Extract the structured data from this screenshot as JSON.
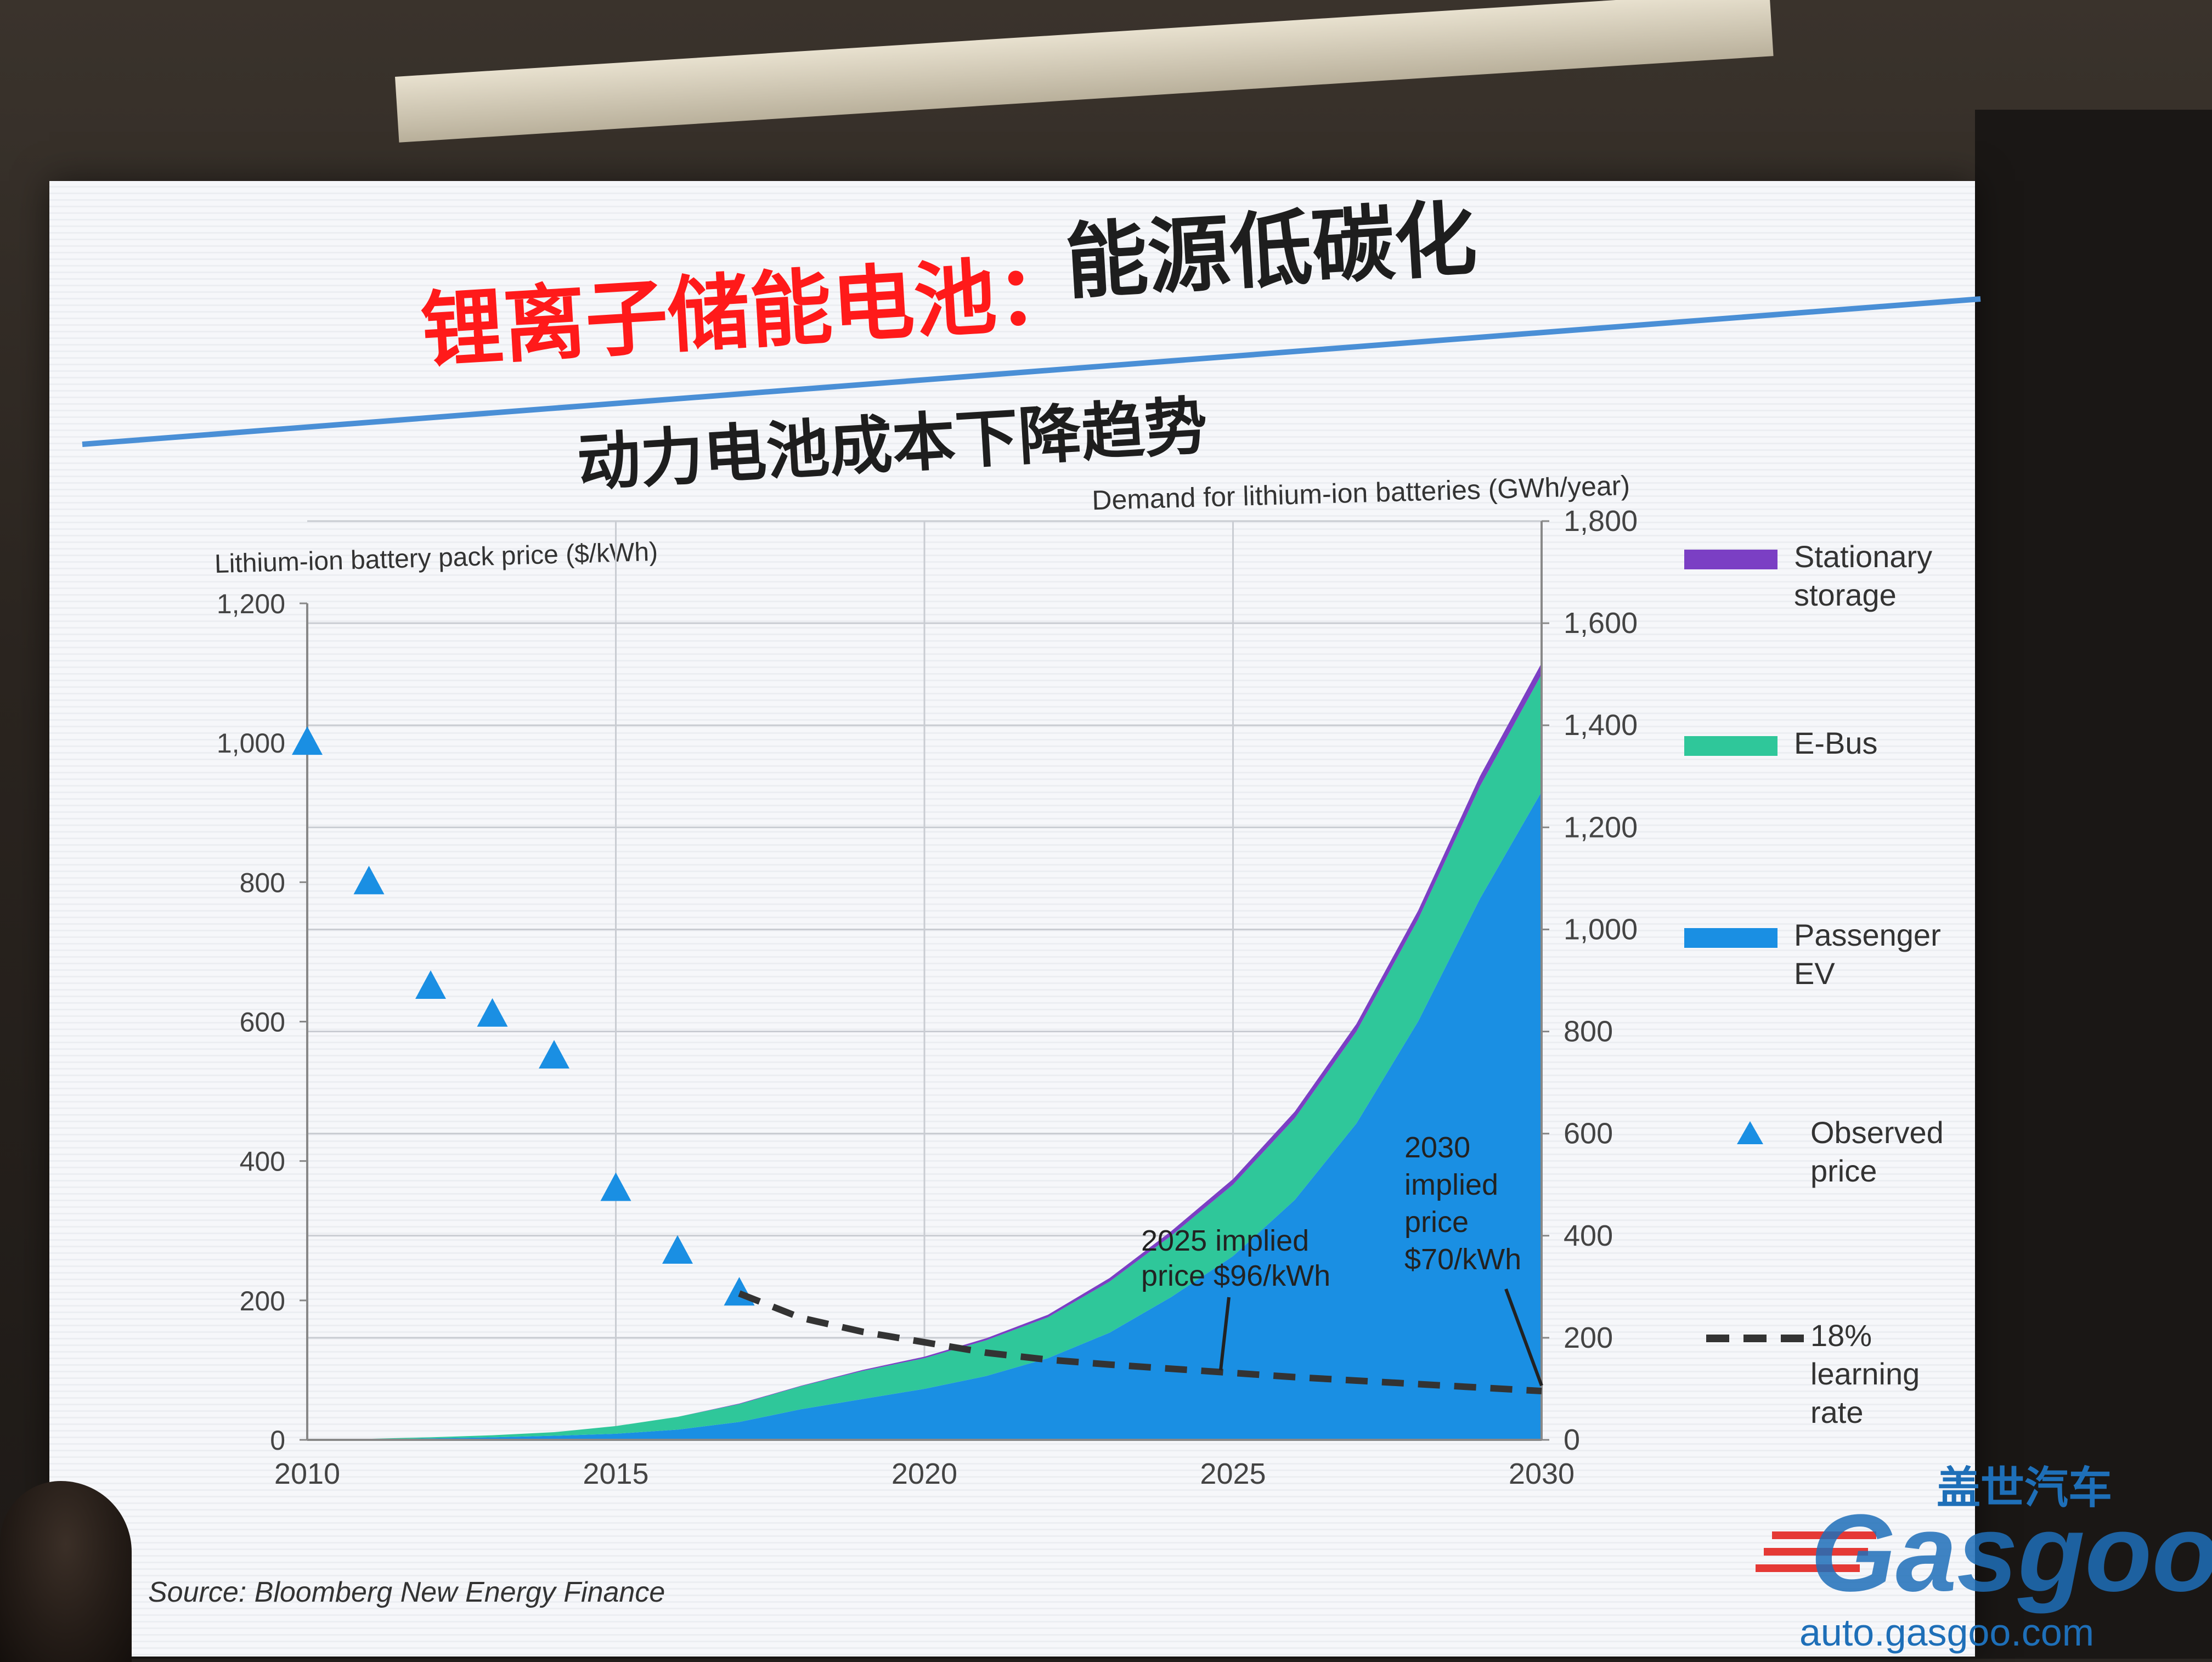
{
  "slide": {
    "title_red": "锂离子储能电池：",
    "title_dark": "能源低碳化",
    "subtitle": "动力电池成本下降趋势",
    "source": "Source: Bloomberg New Energy Finance"
  },
  "chart_data": {
    "type": "area",
    "left_axis": {
      "label": "Lithium-ion battery pack price ($/kWh)",
      "ylim": [
        0,
        1200
      ],
      "ticks": [
        "0",
        "200",
        "400",
        "600",
        "800",
        "1,000",
        "1,200"
      ]
    },
    "right_axis": {
      "label": "Demand for lithium-ion batteries (GWh/year)",
      "ylim": [
        0,
        1800
      ],
      "ticks": [
        "0",
        "200",
        "400",
        "600",
        "800",
        "1,000",
        "1,200",
        "1,400",
        "1,600",
        "1,800"
      ]
    },
    "x_axis": {
      "xlim": [
        2010,
        2030
      ],
      "ticks": [
        "2010",
        "2015",
        "2020",
        "2025",
        "2030"
      ]
    },
    "grid": true,
    "x": [
      2010,
      2011,
      2012,
      2013,
      2014,
      2015,
      2016,
      2017,
      2018,
      2019,
      2020,
      2021,
      2022,
      2023,
      2024,
      2025,
      2026,
      2027,
      2028,
      2029,
      2030
    ],
    "series": [
      {
        "name": "Passenger EV",
        "color": "#1a8fe3",
        "axis": "right",
        "values": [
          0,
          1,
          3,
          5,
          8,
          12,
          20,
          35,
          60,
          80,
          100,
          125,
          160,
          210,
          280,
          360,
          470,
          620,
          820,
          1060,
          1270
        ]
      },
      {
        "name": "E-Bus",
        "color": "#2fc79a",
        "axis": "right",
        "values": [
          0,
          1,
          2,
          4,
          7,
          15,
          25,
          35,
          45,
          55,
          60,
          70,
          80,
          100,
          120,
          140,
          160,
          180,
          200,
          220,
          230
        ]
      },
      {
        "name": "Stationary storage",
        "color": "#7b3fc4",
        "axis": "right",
        "values": [
          0,
          0,
          0,
          0,
          0,
          0,
          0,
          1,
          1,
          2,
          3,
          4,
          5,
          7,
          9,
          11,
          13,
          15,
          17,
          20,
          22
        ]
      }
    ],
    "observed_price": {
      "name": "Observed price",
      "color": "#1a8fe3",
      "axis": "left",
      "x": [
        2010,
        2011,
        2012,
        2013,
        2014,
        2015,
        2016,
        2017
      ],
      "y": [
        1000,
        800,
        650,
        610,
        550,
        360,
        270,
        210
      ]
    },
    "learning_rate": {
      "name": "18% learning rate",
      "color": "#333333",
      "axis": "left",
      "x": [
        2017,
        2018,
        2019,
        2020,
        2021,
        2022,
        2023,
        2024,
        2025,
        2026,
        2027,
        2028,
        2029,
        2030
      ],
      "y": [
        210,
        175,
        155,
        140,
        125,
        115,
        108,
        102,
        96,
        90,
        85,
        80,
        75,
        70
      ]
    },
    "legend": {
      "placement": "right",
      "entries": [
        {
          "label_line1": "Stationary",
          "label_line2": "storage",
          "color": "#7b3fc4",
          "kind": "bar"
        },
        {
          "label_line1": "E-Bus",
          "label_line2": "",
          "color": "#2fc79a",
          "kind": "bar"
        },
        {
          "label_line1": "Passenger",
          "label_line2": "EV",
          "color": "#1a8fe3",
          "kind": "bar"
        },
        {
          "label_line1": "Observed",
          "label_line2": "price",
          "color": "#1a8fe3",
          "kind": "triangle"
        },
        {
          "label_line1": "18%",
          "label_line2": "learning",
          "label_line3": "rate",
          "color": "#333333",
          "kind": "dash"
        }
      ]
    },
    "annotations": [
      {
        "lines": [
          "2025 implied",
          "price $96/kWh"
        ],
        "x": 2025,
        "y": 96
      },
      {
        "lines": [
          "2030",
          "implied",
          "price",
          "$70/kWh"
        ],
        "x": 2030,
        "y": 70
      }
    ]
  },
  "watermark": {
    "cn": "盖世汽车",
    "logo": "Gasgoo",
    "url": "auto.gasgoo.com"
  }
}
